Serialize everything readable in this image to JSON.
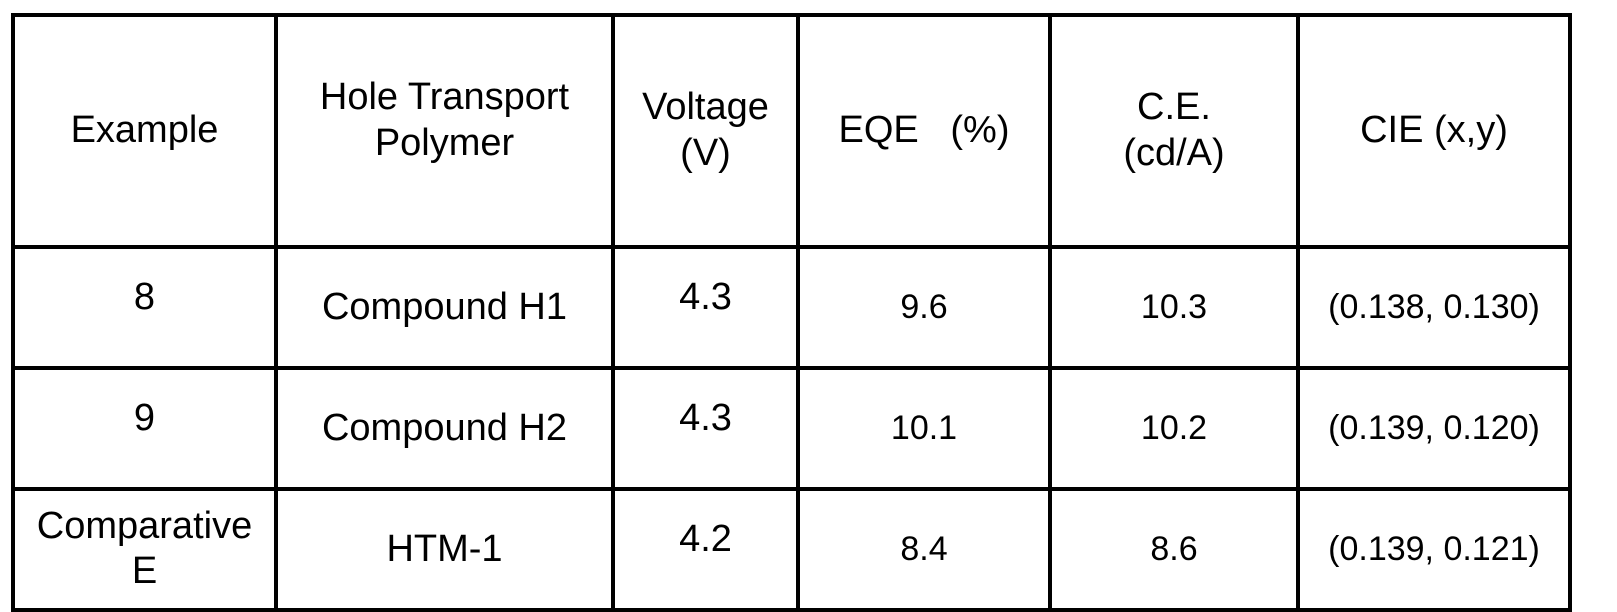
{
  "table": {
    "headers": [
      [
        "Example"
      ],
      [
        "Hole Transport",
        "Polymer"
      ],
      [
        "Voltage",
        "(V)"
      ],
      [
        "EQE   (%)"
      ],
      [
        "C.E.",
        "(cd/A)"
      ],
      [
        "CIE (x,y)"
      ]
    ],
    "rows": [
      {
        "example": [
          "8"
        ],
        "polymer": "Compound H1",
        "voltage": "4.3",
        "eqe": "9.6",
        "ce": "10.3",
        "cie": "(0.138, 0.130)"
      },
      {
        "example": [
          "9"
        ],
        "polymer": "Compound H2",
        "voltage": "4.3",
        "eqe": "10.1",
        "ce": "10.2",
        "cie": "(0.139, 0.120)"
      },
      {
        "example": [
          "Comparative",
          "E"
        ],
        "polymer": "HTM-1",
        "voltage": "4.2",
        "eqe": "8.4",
        "ce": "8.6",
        "cie": "(0.139, 0.121)"
      }
    ]
  }
}
